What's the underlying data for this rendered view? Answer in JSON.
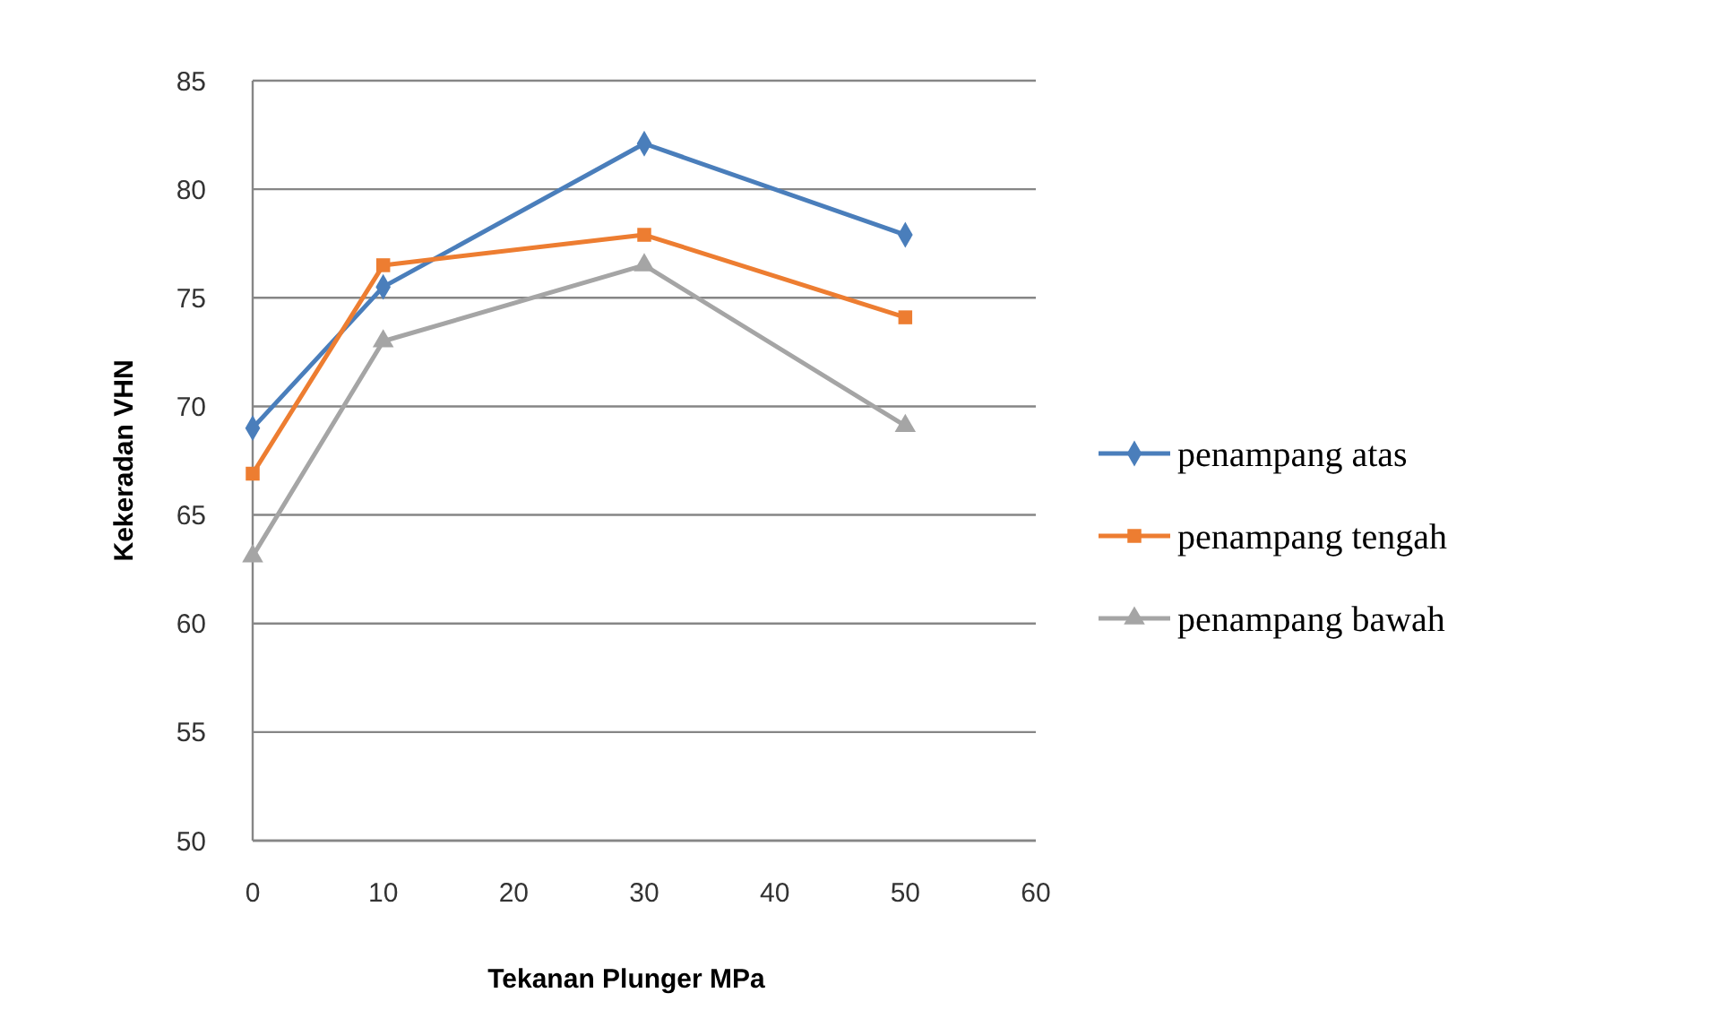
{
  "chart_data": {
    "type": "line",
    "xlabel": "Tekanan Plunger MPa",
    "ylabel": "Kekeradan VHN",
    "x": [
      0,
      10,
      30,
      50
    ],
    "series": [
      {
        "name": "penampang atas",
        "color": "#4a7ebb",
        "marker": "diamond",
        "values": [
          69.0,
          75.5,
          82.1,
          77.9
        ]
      },
      {
        "name": "penampang tengah",
        "color": "#ed7d31",
        "marker": "square",
        "values": [
          66.9,
          76.5,
          77.9,
          74.1
        ]
      },
      {
        "name": "penampang bawah",
        "color": "#a5a5a5",
        "marker": "triangle",
        "values": [
          63.1,
          73.0,
          76.5,
          69.1
        ]
      }
    ],
    "xlim": [
      0,
      60
    ],
    "xticks": [
      0,
      10,
      20,
      30,
      40,
      50,
      60
    ],
    "ylim": [
      50,
      85
    ],
    "yticks": [
      50,
      55,
      60,
      65,
      70,
      75,
      80,
      85
    ],
    "grid": "y",
    "legend": "right",
    "line_style": "solid"
  }
}
